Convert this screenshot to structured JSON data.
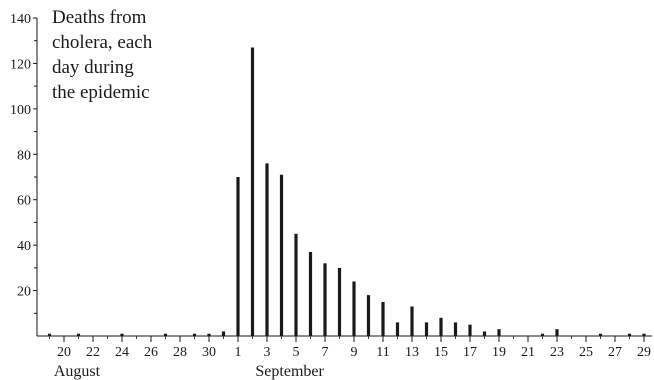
{
  "chart_data": {
    "type": "bar",
    "title_lines": [
      "Deaths from",
      "cholera, each",
      "day during",
      "the epidemic"
    ],
    "xlabel": "",
    "ylabel": "",
    "ylim": [
      0,
      140
    ],
    "y_ticks": [
      20,
      40,
      60,
      80,
      100,
      120,
      140
    ],
    "x_ticks": [
      {
        "label": "20",
        "day": 20
      },
      {
        "label": "22",
        "day": 22
      },
      {
        "label": "24",
        "day": 24
      },
      {
        "label": "26",
        "day": 26
      },
      {
        "label": "28",
        "day": 28
      },
      {
        "label": "30",
        "day": 30
      },
      {
        "label": "1",
        "day": 32
      },
      {
        "label": "3",
        "day": 34
      },
      {
        "label": "5",
        "day": 36
      },
      {
        "label": "7",
        "day": 38
      },
      {
        "label": "9",
        "day": 40
      },
      {
        "label": "11",
        "day": 42
      },
      {
        "label": "13",
        "day": 44
      },
      {
        "label": "15",
        "day": 46
      },
      {
        "label": "17",
        "day": 48
      },
      {
        "label": "19",
        "day": 50
      },
      {
        "label": "21",
        "day": 52
      },
      {
        "label": "23",
        "day": 54
      },
      {
        "label": "25",
        "day": 56
      },
      {
        "label": "27",
        "day": 58
      },
      {
        "label": "29",
        "day": 60
      }
    ],
    "month_labels": [
      {
        "label": "August",
        "day": 19.3
      },
      {
        "label": "September",
        "day": 33.2
      }
    ],
    "series": [
      {
        "x": [
          19,
          21,
          24,
          27,
          29,
          30,
          31,
          32,
          33,
          34,
          35,
          36,
          37,
          38,
          39,
          40,
          41,
          42,
          43,
          44,
          45,
          46,
          47,
          48,
          49,
          50,
          53,
          54,
          57,
          59,
          60
        ],
        "values": [
          1,
          1,
          1,
          1,
          1,
          1,
          2,
          70,
          127,
          76,
          71,
          45,
          37,
          32,
          30,
          24,
          18,
          15,
          6,
          13,
          6,
          8,
          6,
          5,
          2,
          3,
          1,
          3,
          1,
          1,
          1
        ]
      }
    ],
    "grid": false,
    "bar_color": "#1a1a1a",
    "axis_color": "#1a1a1a"
  }
}
